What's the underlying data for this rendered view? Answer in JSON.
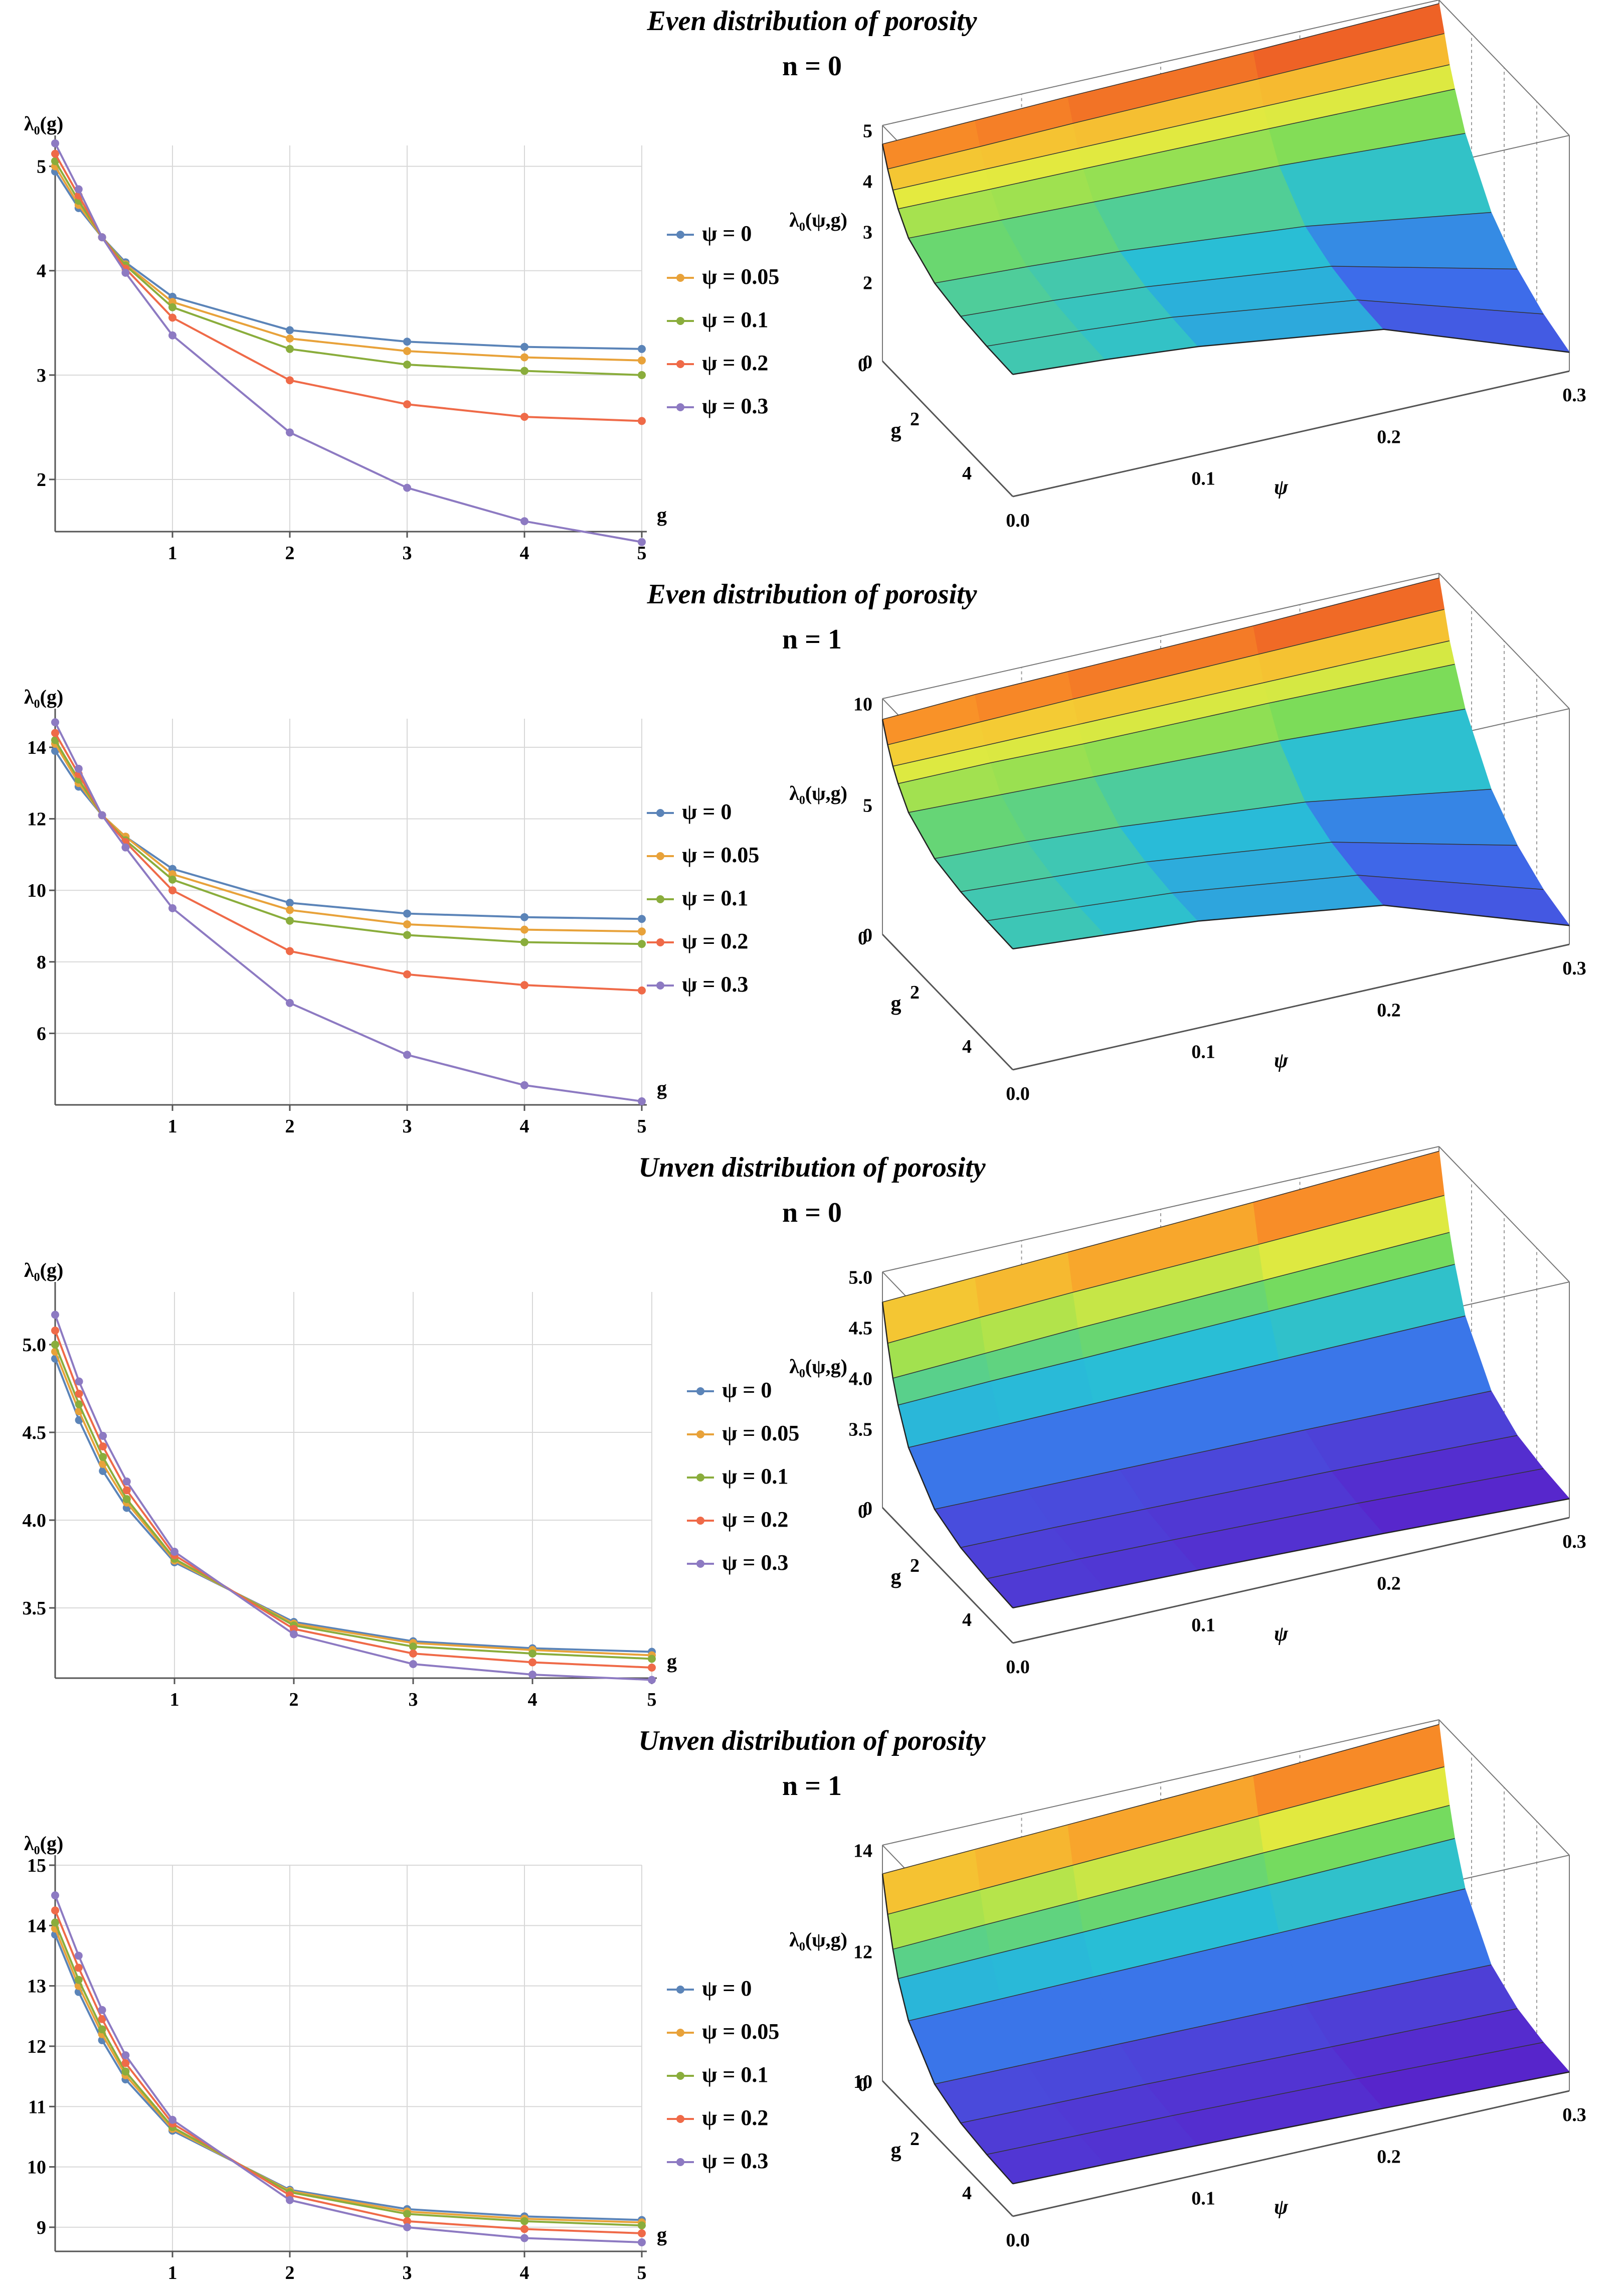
{
  "colors": {
    "series": [
      "#5b84b8",
      "#e8a23a",
      "#8aad3c",
      "#ef6a48",
      "#8d7ac2"
    ],
    "grid": "#d8d8d8",
    "axis": "#555555"
  },
  "panels": [
    {
      "title": "Even distribution of porosity",
      "subtitle": "n = 0",
      "chart_data": {
        "type": "line",
        "ylabel": "λ₀(g)",
        "xlabel": "g",
        "xlim": [
          0,
          5
        ],
        "ylim": [
          1.5,
          5.2
        ],
        "xticks": [
          1,
          2,
          3,
          4,
          5
        ],
        "yticks": [
          2,
          3,
          4,
          5
        ],
        "grid": true,
        "legend_position": "right",
        "x": [
          0,
          0.2,
          0.4,
          0.6,
          1,
          2,
          3,
          4,
          5
        ],
        "series": [
          {
            "name": "ψ = 0",
            "values": [
              4.95,
              4.6,
              4.32,
              4.08,
              3.75,
              3.43,
              3.32,
              3.27,
              3.25
            ]
          },
          {
            "name": "ψ = 0.05",
            "values": [
              5.0,
              4.63,
              4.32,
              4.06,
              3.7,
              3.35,
              3.23,
              3.17,
              3.14
            ]
          },
          {
            "name": "ψ = 0.1",
            "values": [
              5.05,
              4.67,
              4.32,
              4.05,
              3.65,
              3.25,
              3.1,
              3.04,
              3.0
            ]
          },
          {
            "name": "ψ = 0.2",
            "values": [
              5.12,
              4.72,
              4.32,
              4.02,
              3.55,
              2.95,
              2.72,
              2.6,
              2.56
            ]
          },
          {
            "name": "ψ = 0.3",
            "values": [
              5.22,
              4.78,
              4.32,
              3.98,
              3.38,
              2.45,
              1.92,
              1.6,
              1.4
            ]
          }
        ]
      },
      "surface": {
        "zlabel": "λ₀(ψ,g)",
        "xlabel": "ψ",
        "ylabel": "g",
        "xticks": [
          "0.0",
          "0.1",
          "0.2",
          "0.3"
        ],
        "yticks": [
          "0",
          "2",
          "4"
        ],
        "zticks": [
          "0",
          "2",
          "3",
          "4",
          "5"
        ],
        "zmin": 1.4,
        "zmax": 5.2
      }
    },
    {
      "title": "Even distribution of porosity",
      "subtitle": "n = 1",
      "chart_data": {
        "type": "line",
        "ylabel": "λ₀(g)",
        "xlabel": "g",
        "xlim": [
          0,
          5
        ],
        "ylim": [
          4.0,
          14.8
        ],
        "xticks": [
          1,
          2,
          3,
          4,
          5
        ],
        "yticks": [
          6,
          8,
          10,
          12,
          14
        ],
        "grid": true,
        "legend_position": "right",
        "x": [
          0,
          0.2,
          0.4,
          0.6,
          1,
          2,
          3,
          4,
          5
        ],
        "series": [
          {
            "name": "ψ = 0",
            "values": [
              13.9,
              12.9,
              12.1,
              11.5,
              10.6,
              9.65,
              9.35,
              9.25,
              9.2
            ]
          },
          {
            "name": "ψ = 0.05",
            "values": [
              14.1,
              13.0,
              12.1,
              11.5,
              10.45,
              9.45,
              9.05,
              8.9,
              8.85
            ]
          },
          {
            "name": "ψ = 0.1",
            "values": [
              14.2,
              13.1,
              12.1,
              11.4,
              10.3,
              9.15,
              8.75,
              8.55,
              8.5
            ]
          },
          {
            "name": "ψ = 0.2",
            "values": [
              14.4,
              13.25,
              12.1,
              11.35,
              10.0,
              8.3,
              7.65,
              7.35,
              7.2
            ]
          },
          {
            "name": "ψ = 0.3",
            "values": [
              14.7,
              13.4,
              12.1,
              11.2,
              9.5,
              6.85,
              5.4,
              4.55,
              4.1
            ]
          }
        ]
      },
      "surface": {
        "zlabel": "λ₀(ψ,g)",
        "xlabel": "ψ",
        "ylabel": "g",
        "xticks": [
          "0.0",
          "0.1",
          "0.2",
          "0.3"
        ],
        "yticks": [
          "0",
          "2",
          "4"
        ],
        "zticks": [
          "0",
          "5",
          "10"
        ],
        "zmin": 4.1,
        "zmax": 14.7
      }
    },
    {
      "title": "Unven distribution of porosity",
      "subtitle": "n = 0",
      "chart_data": {
        "type": "line",
        "ylabel": "λ₀(g)",
        "xlabel": "g",
        "xlim": [
          0,
          5
        ],
        "ylim": [
          3.1,
          5.3
        ],
        "xticks": [
          1,
          2,
          3,
          4,
          5
        ],
        "yticks": [
          3.5,
          4.0,
          4.5,
          5.0
        ],
        "ytick_labels": [
          "3.5",
          "4.0",
          "4.5",
          "5.0"
        ],
        "grid": true,
        "legend_position": "right",
        "x": [
          0,
          0.2,
          0.4,
          0.6,
          1,
          2,
          3,
          4,
          5
        ],
        "series": [
          {
            "name": "ψ = 0",
            "values": [
              4.92,
              4.57,
              4.28,
              4.07,
              3.76,
              3.42,
              3.31,
              3.27,
              3.25
            ]
          },
          {
            "name": "ψ = 0.05",
            "values": [
              4.96,
              4.62,
              4.32,
              4.1,
              3.77,
              3.41,
              3.3,
              3.26,
              3.23
            ]
          },
          {
            "name": "ψ = 0.1",
            "values": [
              5.0,
              4.66,
              4.36,
              4.12,
              3.78,
              3.4,
              3.28,
              3.24,
              3.21
            ]
          },
          {
            "name": "ψ = 0.2",
            "values": [
              5.08,
              4.72,
              4.42,
              4.17,
              3.8,
              3.38,
              3.24,
              3.19,
              3.16
            ]
          },
          {
            "name": "ψ = 0.3",
            "values": [
              5.17,
              4.79,
              4.48,
              4.22,
              3.82,
              3.35,
              3.18,
              3.12,
              3.09
            ]
          }
        ]
      },
      "surface": {
        "zlabel": "λ₀(ψ,g)",
        "xlabel": "ψ",
        "ylabel": "g",
        "xticks": [
          "0.0",
          "0.1",
          "0.2",
          "0.3"
        ],
        "yticks": [
          "0",
          "2",
          "4"
        ],
        "zticks": [
          "0",
          "3.5",
          "4.0",
          "4.5",
          "5.0"
        ],
        "zmin": 3.09,
        "zmax": 5.17
      }
    },
    {
      "title": "Unven distribution of porosity",
      "subtitle": "n = 1",
      "chart_data": {
        "type": "line",
        "ylabel": "λ₀(g)",
        "xlabel": "g",
        "xlim": [
          0,
          5
        ],
        "ylim": [
          8.6,
          15.0
        ],
        "xticks": [
          1,
          2,
          3,
          4,
          5
        ],
        "yticks": [
          9,
          10,
          11,
          12,
          13,
          14,
          15
        ],
        "grid": true,
        "legend_position": "right",
        "x": [
          0,
          0.2,
          0.4,
          0.6,
          1,
          2,
          3,
          4,
          5
        ],
        "series": [
          {
            "name": "ψ = 0",
            "values": [
              13.85,
              12.9,
              12.1,
              11.45,
              10.6,
              9.62,
              9.3,
              9.18,
              9.12
            ]
          },
          {
            "name": "ψ = 0.05",
            "values": [
              13.95,
              13.0,
              12.2,
              11.52,
              10.63,
              9.6,
              9.26,
              9.14,
              9.08
            ]
          },
          {
            "name": "ψ = 0.1",
            "values": [
              14.05,
              13.1,
              12.28,
              11.58,
              10.66,
              9.58,
              9.22,
              9.1,
              9.03
            ]
          },
          {
            "name": "ψ = 0.2",
            "values": [
              14.25,
              13.3,
              12.45,
              11.72,
              10.72,
              9.53,
              9.1,
              8.97,
              8.9
            ]
          },
          {
            "name": "ψ = 0.3",
            "values": [
              14.5,
              13.5,
              12.6,
              11.85,
              10.78,
              9.45,
              9.0,
              8.82,
              8.75
            ]
          }
        ]
      },
      "surface": {
        "zlabel": "λ₀(ψ,g)",
        "xlabel": "ψ",
        "ylabel": "g",
        "xticks": [
          "0.0",
          "0.1",
          "0.2",
          "0.3"
        ],
        "yticks": [
          "0",
          "2",
          "4"
        ],
        "zticks": [
          "10",
          "12",
          "14"
        ],
        "zmin": 8.75,
        "zmax": 14.5
      }
    }
  ]
}
